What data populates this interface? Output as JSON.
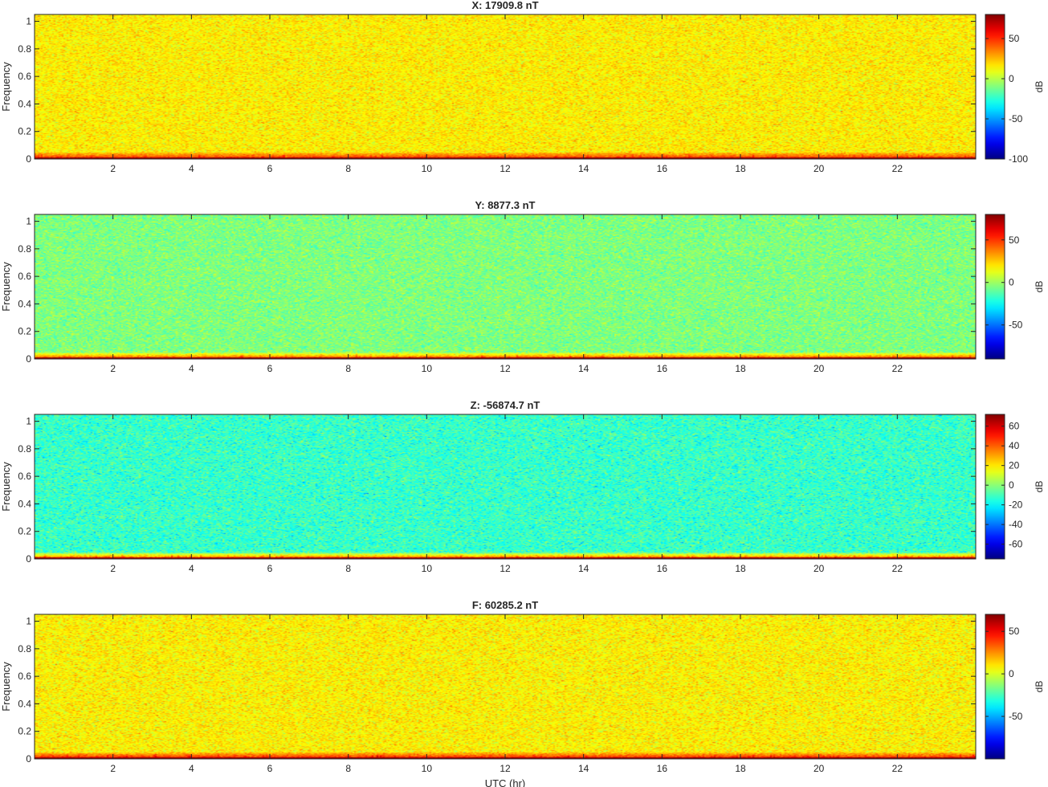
{
  "chart_data": [
    {
      "type": "heatmap",
      "title": "X: 17909.8 nT",
      "xlabel": "",
      "ylabel": "Frequency",
      "xlim": [
        0,
        24
      ],
      "ylim": [
        0,
        1.05
      ],
      "x_ticks": [
        2,
        4,
        6,
        8,
        10,
        12,
        14,
        16,
        18,
        20,
        22
      ],
      "y_ticks": [
        0,
        0.2,
        0.4,
        0.6,
        0.8,
        1
      ],
      "colorbar": {
        "label": "dB",
        "range": [
          -100,
          80
        ],
        "ticks": [
          -100,
          -50,
          0,
          50
        ],
        "colormap": "jet"
      },
      "approx_levels_dB": {
        "background": 15,
        "low_band": 45,
        "dc_line": 75
      }
    },
    {
      "type": "heatmap",
      "title": "Y: 8877.3 nT",
      "xlabel": "",
      "ylabel": "Frequency",
      "xlim": [
        0,
        24
      ],
      "ylim": [
        0,
        1.05
      ],
      "x_ticks": [
        2,
        4,
        6,
        8,
        10,
        12,
        14,
        16,
        18,
        20,
        22
      ],
      "y_ticks": [
        0,
        0.2,
        0.4,
        0.6,
        0.8,
        1
      ],
      "colorbar": {
        "label": "dB",
        "range": [
          -90,
          80
        ],
        "ticks": [
          -50,
          0,
          50
        ],
        "colormap": "jet"
      },
      "approx_levels_dB": {
        "background": -5,
        "low_band": 40,
        "dc_line": 75
      }
    },
    {
      "type": "heatmap",
      "title": "Z: -56874.7 nT",
      "xlabel": "",
      "ylabel": "Frequency",
      "xlim": [
        0,
        24
      ],
      "ylim": [
        0,
        1.05
      ],
      "x_ticks": [
        2,
        4,
        6,
        8,
        10,
        12,
        14,
        16,
        18,
        20,
        22
      ],
      "y_ticks": [
        0,
        0.2,
        0.4,
        0.6,
        0.8,
        1
      ],
      "colorbar": {
        "label": "dB",
        "range": [
          -75,
          72
        ],
        "ticks": [
          -60,
          -40,
          -20,
          0,
          20,
          40,
          60
        ],
        "colormap": "jet"
      },
      "approx_levels_dB": {
        "background": -12,
        "low_band": 35,
        "dc_line": 65
      }
    },
    {
      "type": "heatmap",
      "title": "F: 60285.2 nT",
      "xlabel": "UTC (hr)",
      "ylabel": "Frequency",
      "xlim": [
        0,
        24
      ],
      "ylim": [
        0,
        1.05
      ],
      "x_ticks": [
        2,
        4,
        6,
        8,
        10,
        12,
        14,
        16,
        18,
        20,
        22
      ],
      "y_ticks": [
        0,
        0.2,
        0.4,
        0.6,
        0.8,
        1
      ],
      "colorbar": {
        "label": "dB",
        "range": [
          -100,
          70
        ],
        "ticks": [
          -50,
          0,
          50
        ],
        "colormap": "jet"
      },
      "approx_levels_dB": {
        "background": 8,
        "low_band": 40,
        "dc_line": 65
      }
    }
  ]
}
